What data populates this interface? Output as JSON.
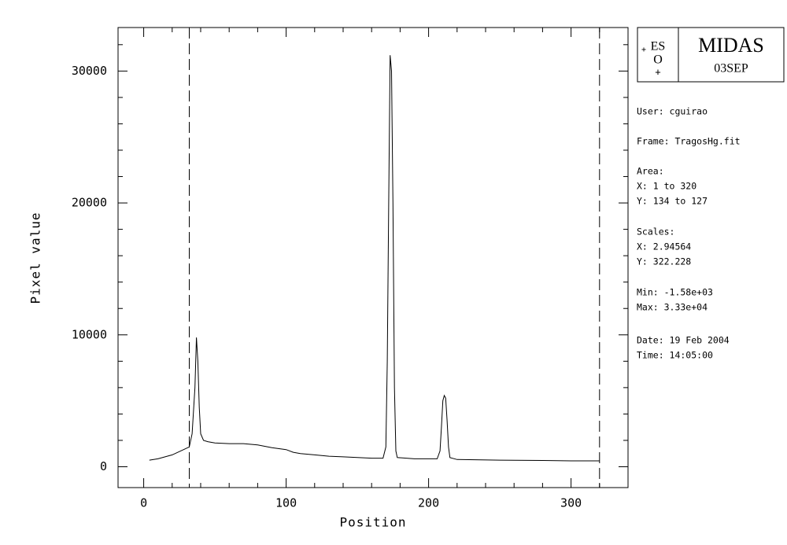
{
  "chart_data": {
    "type": "line",
    "x_label": "Position",
    "y_label": "Pixel value",
    "xlim": [
      -18,
      340
    ],
    "ylim": [
      -1580,
      33300
    ],
    "xticks": [
      0,
      100,
      200,
      300
    ],
    "yticks": [
      0,
      10000,
      20000,
      30000
    ],
    "xminorticks": [
      20,
      40,
      60,
      80,
      120,
      140,
      160,
      180,
      220,
      240,
      260,
      280,
      320
    ],
    "yminorticks": [
      2000,
      4000,
      6000,
      8000,
      12000,
      14000,
      16000,
      18000,
      22000,
      24000,
      26000,
      28000,
      32000
    ],
    "vlines": [
      32,
      320
    ],
    "color": "#000000",
    "x": [
      4,
      10,
      20,
      28,
      32,
      34,
      36,
      37,
      38,
      39,
      40,
      42,
      45,
      50,
      60,
      70,
      80,
      90,
      100,
      105,
      110,
      120,
      130,
      140,
      150,
      160,
      168,
      170,
      171,
      172,
      173,
      174,
      175,
      176,
      177,
      178,
      190,
      200,
      206,
      208,
      209,
      210,
      211,
      212,
      213,
      214,
      215,
      220,
      250,
      280,
      300,
      320
    ],
    "series": [
      {
        "values": [
          500,
          600,
          900,
          1300,
          1500,
          2500,
          6000,
          9800,
          8000,
          4500,
          2500,
          2000,
          1900,
          1800,
          1750,
          1750,
          1650,
          1450,
          1300,
          1100,
          1000,
          900,
          800,
          750,
          700,
          650,
          650,
          1500,
          8000,
          20000,
          31200,
          30000,
          20000,
          6000,
          1200,
          700,
          600,
          600,
          600,
          1200,
          3000,
          5000,
          5400,
          5200,
          3500,
          1500,
          700,
          550,
          500,
          480,
          450,
          450
        ]
      }
    ]
  },
  "panel": {
    "logo": [
      "ES",
      "O"
    ],
    "title": "MIDAS",
    "date_code": "03SEP",
    "lines": [
      "User: cguirao",
      "Frame: TragosHg.fit",
      "Area:",
      "X: 1 to 320",
      "Y: 134 to 127",
      "Scales:",
      "X: 2.94564",
      "Y: 322.228",
      "Min: -1.58e+03",
      "Max: 3.33e+04",
      "Date: 19 Feb 2004",
      "Time: 14:05:00"
    ]
  }
}
